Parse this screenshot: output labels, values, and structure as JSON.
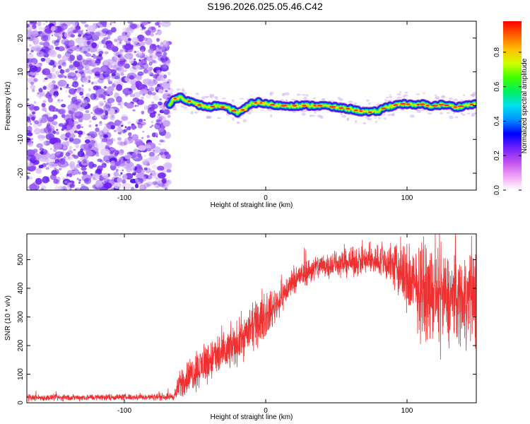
{
  "title": "S196.2026.025.05.46.C42",
  "colors": {
    "noise": "#7b2cf0",
    "snr_line": "#ee3030",
    "ridge_core": "#e8302a",
    "colormap": [
      "#ffffff",
      "#f0a0f4",
      "#c050ee",
      "#7020ff",
      "#0000ff",
      "#0090ff",
      "#00e0f0",
      "#00f060",
      "#40ff00",
      "#d0ff00",
      "#ffc000",
      "#ff6000",
      "#ff0000"
    ]
  },
  "chart_data": [
    {
      "type": "heatmap",
      "name": "spectrogram",
      "title": "",
      "xlabel": "Height of straight line (km)",
      "ylabel": "Frequency (Hz)",
      "xlim": [
        -169,
        149
      ],
      "ylim": [
        -25,
        25
      ],
      "xticks": [
        -100,
        0,
        100
      ],
      "yticks": [
        -20,
        -10,
        0,
        10,
        20
      ],
      "colorbar": {
        "label": "Normalized spectral amplitude",
        "range": [
          0,
          1
        ],
        "ticks": [
          "0.0",
          "0.2",
          "0.4",
          "0.6",
          "0.8"
        ]
      },
      "noise_region_x": [
        -169,
        -68
      ],
      "ridge_frequency": {
        "x": [
          -68,
          -65,
          -60,
          -55,
          -50,
          -45,
          -40,
          -35,
          -30,
          -25,
          -20,
          -15,
          -10,
          -5,
          0,
          10,
          20,
          30,
          40,
          50,
          55,
          60,
          65,
          70,
          75,
          80,
          85,
          90,
          95,
          100,
          105,
          110,
          115,
          120,
          125,
          130,
          135,
          140,
          145,
          149
        ],
        "y": [
          0,
          2,
          2.5,
          1.5,
          0.5,
          0,
          -0.5,
          0,
          -0.5,
          -1,
          -2,
          -1,
          0.5,
          1,
          0.5,
          0,
          0,
          0,
          0,
          -0.5,
          -0.8,
          -1,
          -1.5,
          -1.8,
          -2,
          -1.5,
          -0.5,
          0,
          0.5,
          0.5,
          0,
          0.5,
          0,
          0,
          0.3,
          0,
          -0.5,
          0,
          0.3,
          0.5
        ]
      }
    },
    {
      "type": "line",
      "name": "snr",
      "title": "",
      "xlabel": "Height of straight line (km)",
      "ylabel": "SNR (10 * v/v)",
      "xlim": [
        -169,
        149
      ],
      "ylim": [
        0,
        590
      ],
      "xticks": [
        -100,
        0,
        100
      ],
      "yticks": [
        0,
        100,
        200,
        300,
        400,
        500
      ],
      "envelope": {
        "x": [
          -169,
          -150,
          -100,
          -80,
          -65,
          -60,
          -50,
          -40,
          -30,
          -20,
          -10,
          0,
          10,
          20,
          30,
          40,
          60,
          80,
          90,
          100,
          110,
          120,
          130,
          140,
          149
        ],
        "mean": [
          18,
          18,
          20,
          20,
          22,
          70,
          110,
          150,
          170,
          210,
          260,
          300,
          360,
          430,
          460,
          480,
          490,
          500,
          480,
          430,
          390,
          370,
          360,
          370,
          380
        ],
        "spread": [
          12,
          12,
          12,
          12,
          14,
          60,
          70,
          80,
          80,
          80,
          80,
          80,
          60,
          50,
          50,
          50,
          50,
          60,
          90,
          140,
          160,
          170,
          170,
          170,
          180
        ],
        "max": [
          590,
          590,
          590,
          590,
          590,
          590,
          590,
          590,
          590,
          590,
          590,
          590,
          590,
          590,
          590,
          560,
          575,
          560,
          570,
          590,
          590,
          590,
          590,
          590,
          590
        ]
      }
    }
  ]
}
